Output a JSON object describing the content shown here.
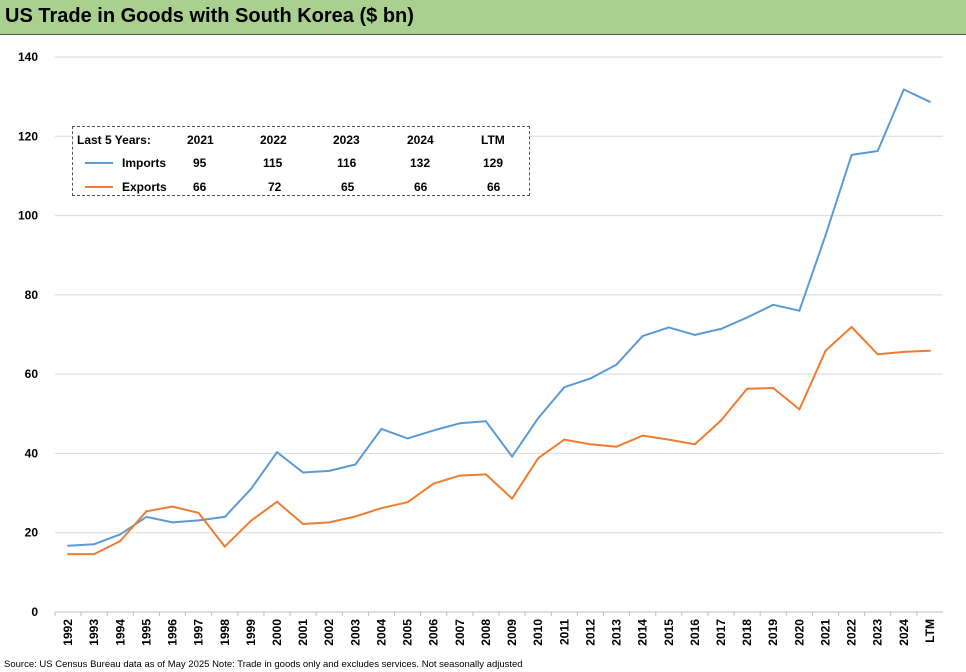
{
  "title": "US Trade in Goods with South Korea ($ bn)",
  "footer": "Source: US Census Bureau data as of May 2025 Note: Trade in goods only and excludes services. Not seasonally adjusted",
  "colors": {
    "title_bar": "#a9d08e",
    "imports": "#5b9bd5",
    "exports": "#ed7d31",
    "gridline": "#d9d9d9"
  },
  "legend": {
    "header": "Last 5 Years:",
    "columns": [
      "2021",
      "2022",
      "2023",
      "2024",
      "LTM"
    ],
    "rows": [
      {
        "name": "Imports",
        "values": [
          "95",
          "115",
          "116",
          "132",
          "129"
        ]
      },
      {
        "name": "Exports",
        "values": [
          "66",
          "72",
          "65",
          "66",
          "66"
        ]
      }
    ]
  },
  "chart_data": {
    "type": "line",
    "title": "US Trade in Goods with South Korea ($ bn)",
    "xlabel": "",
    "ylabel": "",
    "ylim": [
      0,
      140
    ],
    "yticks": [
      0,
      20,
      40,
      60,
      80,
      100,
      120,
      140
    ],
    "grid": true,
    "legend_position": "top-left",
    "categories": [
      "1992",
      "1993",
      "1994",
      "1995",
      "1996",
      "1997",
      "1998",
      "1999",
      "2000",
      "2001",
      "2002",
      "2003",
      "2004",
      "2005",
      "2006",
      "2007",
      "2008",
      "2009",
      "2010",
      "2011",
      "2012",
      "2013",
      "2014",
      "2015",
      "2016",
      "2017",
      "2018",
      "2019",
      "2020",
      "2021",
      "2022",
      "2023",
      "2024",
      "LTM"
    ],
    "series": [
      {
        "name": "Imports",
        "values": [
          16.7,
          17.1,
          19.6,
          24.0,
          22.6,
          23.1,
          24.0,
          31.0,
          40.3,
          35.2,
          35.6,
          37.2,
          46.2,
          43.8,
          45.8,
          47.6,
          48.1,
          39.2,
          48.9,
          56.7,
          58.9,
          62.4,
          69.6,
          71.8,
          69.9,
          71.4,
          74.3,
          77.5,
          76.0,
          95.0,
          115.3,
          116.3,
          131.8,
          128.7
        ]
      },
      {
        "name": "Exports",
        "values": [
          14.6,
          14.6,
          17.9,
          25.4,
          26.6,
          25.0,
          16.5,
          23.0,
          27.8,
          22.2,
          22.6,
          24.1,
          26.2,
          27.7,
          32.4,
          34.4,
          34.7,
          28.6,
          38.8,
          43.5,
          42.3,
          41.7,
          44.5,
          43.5,
          42.3,
          48.3,
          56.3,
          56.5,
          51.1,
          65.9,
          71.9,
          65.0,
          65.6,
          65.9
        ]
      }
    ]
  }
}
